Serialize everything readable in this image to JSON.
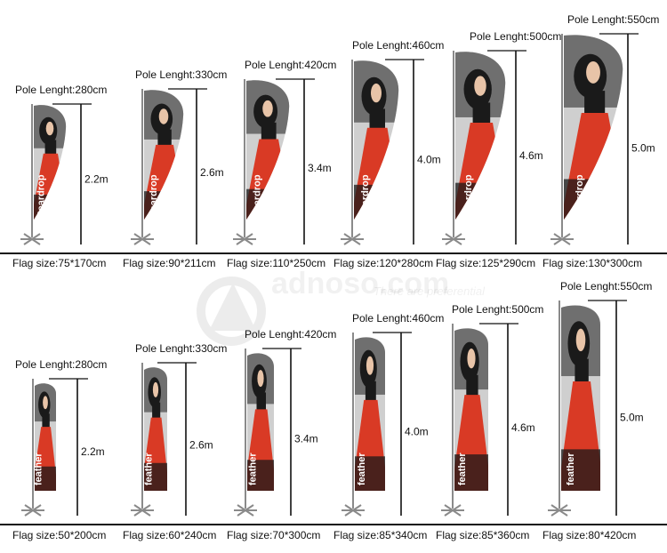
{
  "watermark": {
    "brand": "adnoso.com",
    "tagline": "There are preferential"
  },
  "colors": {
    "fabric_red": "#d93a25",
    "fabric_dark": "#1a1a1a",
    "fabric_light": "#cfcfcf",
    "pole": "#8a8a8a",
    "line": "#111111"
  },
  "rows": [
    {
      "shape": "teardrop",
      "print_text": "teardrop",
      "items": [
        {
          "pole": "Pole Lenght:280cm",
          "height": "2.2m",
          "size": "Flag size:75*170cm"
        },
        {
          "pole": "Pole Lenght:330cm",
          "height": "2.6m",
          "size": "Flag size:90*211cm"
        },
        {
          "pole": "Pole Lenght:420cm",
          "height": "3.4m",
          "size": "Flag size:110*250cm"
        },
        {
          "pole": "Pole Lenght:460cm",
          "height": "4.0m",
          "size": "Flag size:120*280cm"
        },
        {
          "pole": "Pole Lenght:500cm",
          "height": "4.6m",
          "size": "Flag size:125*290cm"
        },
        {
          "pole": "Pole Lenght:550cm",
          "height": "5.0m",
          "size": "Flag size:130*300cm"
        }
      ]
    },
    {
      "shape": "feather",
      "print_text": "feather",
      "items": [
        {
          "pole": "Pole Lenght:280cm",
          "height": "2.2m",
          "size": "Flag size:50*200cm"
        },
        {
          "pole": "Pole Lenght:330cm",
          "height": "2.6m",
          "size": "Flag size:60*240cm"
        },
        {
          "pole": "Pole Lenght:420cm",
          "height": "3.4m",
          "size": "Flag size:70*300cm"
        },
        {
          "pole": "Pole Lenght:460cm",
          "height": "4.0m",
          "size": "Flag size:85*340cm"
        },
        {
          "pole": "Pole Lenght:500cm",
          "height": "4.6m",
          "size": "Flag size:85*360cm"
        },
        {
          "pole": "Pole Lenght:550cm",
          "height": "5.0m",
          "size": "Flag size:80*420cm"
        }
      ]
    }
  ]
}
